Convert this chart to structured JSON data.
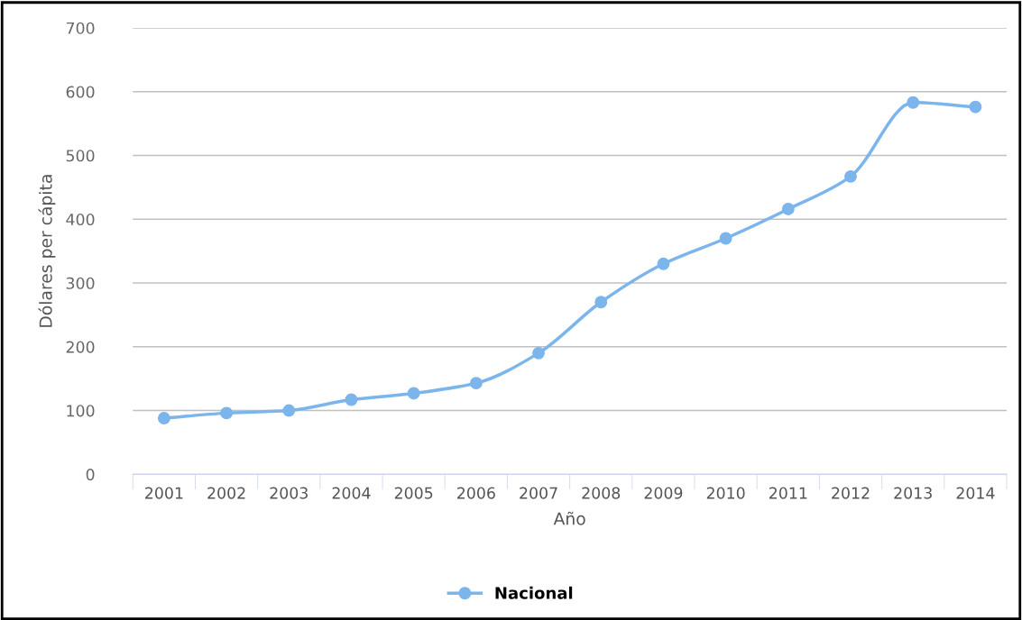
{
  "chart_data": {
    "type": "line",
    "xlabel": "Año",
    "ylabel": "Dólares per cápita",
    "categories": [
      "2001",
      "2002",
      "2003",
      "2004",
      "2005",
      "2006",
      "2007",
      "2008",
      "2009",
      "2010",
      "2011",
      "2012",
      "2013",
      "2014"
    ],
    "series": [
      {
        "name": "Nacional",
        "color": "#7cb5ec",
        "values": [
          88,
          96,
          100,
          117,
          127,
          143,
          190,
          270,
          330,
          370,
          416,
          467,
          583,
          576
        ]
      }
    ],
    "ylim": [
      0,
      700
    ],
    "yticks": [
      0,
      100,
      200,
      300,
      400,
      500,
      600,
      700
    ],
    "grid": "y",
    "legend": "bottom",
    "marker": "circle",
    "line_style": "solid"
  }
}
